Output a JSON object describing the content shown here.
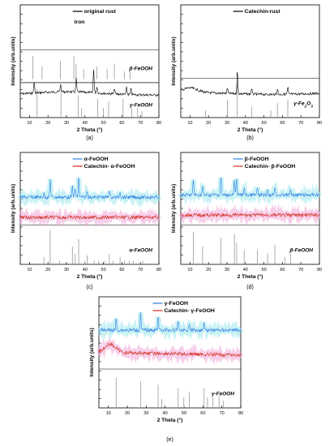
{
  "figure": {
    "panels": [
      {
        "id": "a",
        "caption": "(a)",
        "ylabel": "Intensity (arb.units)",
        "xlabel": "2 Theta (°)",
        "xticks": [
          10,
          20,
          30,
          40,
          50,
          60,
          70,
          80
        ]
      },
      {
        "id": "b",
        "caption": "(b)",
        "ylabel": "Intensity (arb.units)",
        "xlabel": "2 Theta (°)",
        "xticks": [
          10,
          20,
          30,
          40,
          50,
          60,
          70,
          80
        ]
      },
      {
        "id": "c",
        "caption": "(c)",
        "ylabel": "Intensity (arb.units)",
        "xlabel": "2 Theta (°)",
        "xticks": [
          10,
          20,
          30,
          40,
          50,
          60,
          70,
          80
        ]
      },
      {
        "id": "d",
        "caption": "(d)",
        "ylabel": "Intensity (arb.units)",
        "xlabel": "2 Theta (°)",
        "xticks": [
          10,
          20,
          30,
          40,
          50,
          60,
          70,
          80
        ]
      },
      {
        "id": "e",
        "caption": "(e)",
        "ylabel": "Intensity (arb.units)",
        "xlabel": "2 Theta (°)",
        "xticks": [
          10,
          20,
          30,
          40,
          50,
          60,
          70,
          80
        ]
      }
    ]
  },
  "chart_data": [
    {
      "type": "line",
      "panel": "a",
      "xlabel": "2 Theta (°)",
      "ylabel": "Intensity (arb.units)",
      "xlim": [
        5,
        80
      ],
      "legend": [
        "original rust"
      ],
      "annotations": [
        "iron"
      ],
      "series": [
        {
          "name": "original rust",
          "color": "#000000",
          "baseline": 0.8,
          "peaks": [
            [
              12.5,
              0.1
            ],
            [
              26.8,
              0.07
            ],
            [
              35.3,
              0.12
            ],
            [
              44.7,
              0.22
            ],
            [
              46.5,
              0.06
            ],
            [
              56.0,
              0.05
            ],
            [
              62.5,
              0.06
            ],
            [
              64.9,
              0.05
            ]
          ]
        }
      ],
      "references": [
        {
          "name": "β-FeOOH",
          "peaks": [
            [
              11.8,
              0.9
            ],
            [
              16.8,
              0.5
            ],
            [
              26.7,
              0.7
            ],
            [
              34.0,
              0.9
            ],
            [
              35.2,
              0.6
            ],
            [
              39.3,
              0.4
            ],
            [
              46.4,
              0.5
            ],
            [
              52.0,
              0.4
            ],
            [
              55.9,
              0.6
            ],
            [
              61.3,
              0.3
            ],
            [
              64.4,
              0.3
            ]
          ]
        },
        {
          "name": "γ-FeOOH",
          "peaks": [
            [
              14.1,
              0.9
            ],
            [
              27.0,
              0.8
            ],
            [
              36.3,
              0.7
            ],
            [
              38.2,
              0.3
            ],
            [
              46.9,
              0.6
            ],
            [
              49.9,
              0.3
            ],
            [
              52.8,
              0.5
            ],
            [
              60.6,
              0.6
            ],
            [
              65.3,
              0.3
            ],
            [
              68.5,
              0.3
            ],
            [
              70.8,
              0.2
            ]
          ]
        }
      ]
    },
    {
      "type": "line",
      "panel": "b",
      "xlabel": "2 Theta (°)",
      "ylabel": "Intensity (arb.units)",
      "xlim": [
        5,
        80
      ],
      "legend": [
        "Catechin-rust"
      ],
      "series": [
        {
          "name": "Catechin-rust",
          "color": "#000000",
          "baseline": 0.78,
          "peaks": [
            [
              30.2,
              0.05
            ],
            [
              35.6,
              0.2
            ],
            [
              43.3,
              0.05
            ],
            [
              57.3,
              0.05
            ],
            [
              62.9,
              0.06
            ]
          ]
        }
      ],
      "references": [
        {
          "name": "γ-Fe2O3",
          "peaks": [
            [
              18.4,
              0.2
            ],
            [
              30.2,
              0.5
            ],
            [
              35.6,
              0.95
            ],
            [
              43.3,
              0.3
            ],
            [
              53.7,
              0.2
            ],
            [
              57.3,
              0.4
            ],
            [
              62.9,
              0.5
            ]
          ]
        }
      ]
    },
    {
      "type": "line",
      "panel": "c",
      "xlabel": "2 Theta (°)",
      "ylabel": "Intensity (arb.units)",
      "xlim": [
        5,
        80
      ],
      "legend": [
        "α-FeOOH",
        "Catechin- α-FeOOH"
      ],
      "series": [
        {
          "name": "α-FeOOH",
          "color": "#2f7fe6",
          "baseline": 0.4,
          "peaks": [
            [
              17.8,
              0.04
            ],
            [
              21.2,
              0.16
            ],
            [
              33.2,
              0.1
            ],
            [
              34.7,
              0.08
            ],
            [
              36.6,
              0.18
            ],
            [
              41.2,
              0.06
            ],
            [
              53.2,
              0.07
            ],
            [
              59.0,
              0.05
            ]
          ]
        },
        {
          "name": "Catechin- α-FeOOH",
          "color": "#d42a1c",
          "baseline": 0.58,
          "peaks": []
        }
      ],
      "references": [
        {
          "name": "α-FeOOH",
          "peaks": [
            [
              17.8,
              0.2
            ],
            [
              21.2,
              0.95
            ],
            [
              26.3,
              0.1
            ],
            [
              33.2,
              0.5
            ],
            [
              34.7,
              0.3
            ],
            [
              36.6,
              0.7
            ],
            [
              39.9,
              0.1
            ],
            [
              41.2,
              0.25
            ],
            [
              45.0,
              0.1
            ],
            [
              47.3,
              0.1
            ],
            [
              50.6,
              0.1
            ],
            [
              53.2,
              0.3
            ],
            [
              55.3,
              0.1
            ],
            [
              59.0,
              0.2
            ],
            [
              61.3,
              0.1
            ],
            [
              63.9,
              0.1
            ],
            [
              66.1,
              0.1
            ],
            [
              71.3,
              0.1
            ]
          ]
        }
      ]
    },
    {
      "type": "line",
      "panel": "d",
      "xlabel": "2 Theta (°)",
      "ylabel": "Intensity (arb.units)",
      "xlim": [
        5,
        80
      ],
      "legend": [
        "β-FeOOH",
        "Catechin- β-FeOOH"
      ],
      "series": [
        {
          "name": "β-FeOOH",
          "color": "#2f7fe6",
          "baseline": 0.38,
          "peaks": [
            [
              11.8,
              0.14
            ],
            [
              16.8,
              0.08
            ],
            [
              26.7,
              0.16
            ],
            [
              34.0,
              0.12
            ],
            [
              35.2,
              0.16
            ],
            [
              39.3,
              0.07
            ],
            [
              46.4,
              0.06
            ],
            [
              52.0,
              0.05
            ],
            [
              55.9,
              0.08
            ],
            [
              64.4,
              0.05
            ]
          ]
        },
        {
          "name": "Catechin- β-FeOOH",
          "color": "#d42a1c",
          "baseline": 0.56,
          "peaks": []
        }
      ],
      "references": [
        {
          "name": "β-FeOOH",
          "peaks": [
            [
              11.8,
              0.9
            ],
            [
              16.8,
              0.5
            ],
            [
              26.7,
              0.75
            ],
            [
              34.0,
              0.85
            ],
            [
              35.2,
              0.6
            ],
            [
              39.3,
              0.4
            ],
            [
              46.4,
              0.4
            ],
            [
              52.0,
              0.3
            ],
            [
              55.9,
              0.55
            ],
            [
              61.3,
              0.2
            ],
            [
              64.4,
              0.3
            ]
          ]
        }
      ]
    },
    {
      "type": "line",
      "panel": "e",
      "xlabel": "2 Theta (°)",
      "ylabel": "Intensity (arb.units)",
      "xlim": [
        5,
        80
      ],
      "legend": [
        "γ-FeOOH",
        "Catechin- γ-FeOOH"
      ],
      "series": [
        {
          "name": "γ-FeOOH",
          "color": "#2f7fe6",
          "baseline": 0.3,
          "peaks": [
            [
              14.1,
              0.1
            ],
            [
              27.0,
              0.16
            ],
            [
              36.3,
              0.12
            ],
            [
              46.9,
              0.08
            ],
            [
              52.8,
              0.06
            ],
            [
              60.6,
              0.07
            ]
          ]
        },
        {
          "name": "Catechin- γ-FeOOH",
          "color": "#d42a1c",
          "baseline": 0.5,
          "hump": true,
          "peaks": []
        }
      ],
      "references": [
        {
          "name": "γ-FeOOH",
          "peaks": [
            [
              14.1,
              0.85
            ],
            [
              27.0,
              0.75
            ],
            [
              36.3,
              0.65
            ],
            [
              38.2,
              0.25
            ],
            [
              46.9,
              0.55
            ],
            [
              49.9,
              0.3
            ],
            [
              52.8,
              0.45
            ],
            [
              60.6,
              0.55
            ],
            [
              62.4,
              0.3
            ],
            [
              65.3,
              0.3
            ],
            [
              68.5,
              0.35
            ],
            [
              70.8,
              0.2
            ]
          ]
        }
      ]
    }
  ]
}
